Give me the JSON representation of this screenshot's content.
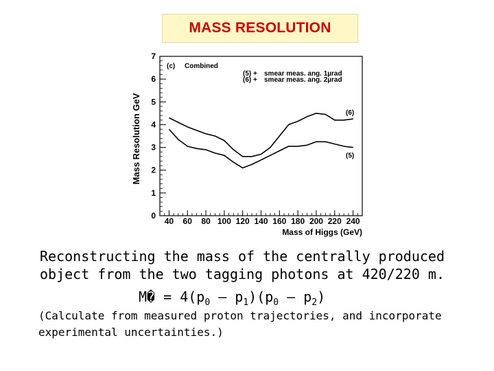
{
  "header": {
    "title": "MASS RESOLUTION"
  },
  "chart_data": {
    "type": "line",
    "panel_label": "(c)",
    "panel_title": "Combined",
    "xlabel": "Mass of Higgs (GeV)",
    "ylabel": "Mass Resolution GeV",
    "xlim": [
      30,
      250
    ],
    "ylim": [
      0,
      7
    ],
    "xticks": [
      40,
      60,
      80,
      100,
      120,
      140,
      160,
      180,
      200,
      220,
      240
    ],
    "yticks": [
      0,
      1,
      2,
      3,
      4,
      5,
      6,
      7
    ],
    "legend": [
      {
        "key": "(5) +",
        "text": "smear meas. ang. 1µrad"
      },
      {
        "key": "(6) +",
        "text": "smear meas. ang. 2µrad"
      }
    ],
    "series": [
      {
        "name": "(6)",
        "x": [
          40,
          50,
          60,
          70,
          80,
          90,
          100,
          110,
          120,
          130,
          140,
          150,
          160,
          170,
          180,
          190,
          200,
          210,
          220,
          230,
          240
        ],
        "values": [
          4.3,
          4.1,
          3.9,
          3.75,
          3.6,
          3.5,
          3.3,
          2.9,
          2.6,
          2.6,
          2.7,
          3.0,
          3.5,
          4.0,
          4.15,
          4.35,
          4.5,
          4.45,
          4.2,
          4.2,
          4.25
        ]
      },
      {
        "name": "(5)",
        "x": [
          40,
          50,
          60,
          70,
          80,
          90,
          100,
          110,
          120,
          130,
          140,
          150,
          160,
          170,
          180,
          190,
          200,
          210,
          220,
          230,
          240
        ],
        "values": [
          3.8,
          3.35,
          3.05,
          2.95,
          2.9,
          2.75,
          2.65,
          2.35,
          2.1,
          2.25,
          2.45,
          2.65,
          2.85,
          3.05,
          3.05,
          3.1,
          3.25,
          3.25,
          3.15,
          3.05,
          3.0
        ]
      }
    ]
  },
  "text": {
    "line1": "Reconstructing the mass of the centrally produced",
    "line2": "object from the two tagging photons at 420/220 m.",
    "formula": {
      "lhs": "M� = 4(p",
      "sub1": "0",
      "mid1": " – p",
      "sub2": "1",
      "mid2": ")(p",
      "sub3": "0",
      "mid3": " – p",
      "sub4": "2",
      "end": ")"
    },
    "note1": "(Calculate from measured proton trajectories, and incorporate",
    "note2": "experimental uncertainties.)"
  }
}
